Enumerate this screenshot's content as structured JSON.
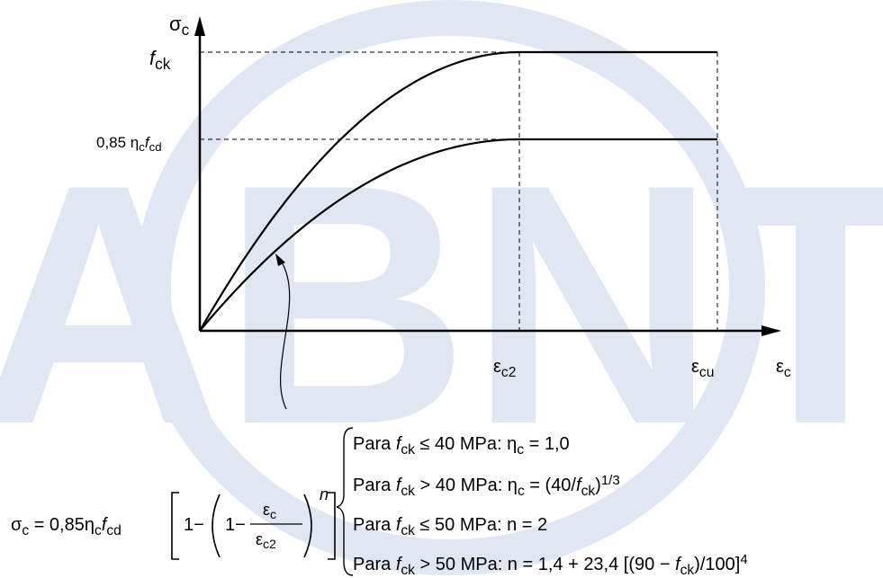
{
  "watermark": "ABNT",
  "diagram": {
    "y_axis": [
      {
        "text": "σ"
      },
      {
        "text": "c",
        "style": "sub"
      }
    ],
    "x_axis": [
      {
        "text": "ε"
      },
      {
        "text": "c",
        "style": "sub"
      }
    ],
    "fck_level": [
      {
        "text": "f",
        "style": "italic"
      },
      {
        "text": "ck",
        "style": "sub"
      }
    ],
    "design_level": [
      {
        "text": "0,85 η"
      },
      {
        "text": "c",
        "style": "sub"
      },
      {
        "text": "f",
        "style": "italic"
      },
      {
        "text": "cd",
        "style": "sub"
      }
    ],
    "strain_c2": [
      {
        "text": "ε"
      },
      {
        "text": "c2",
        "style": "sub"
      }
    ],
    "strain_cu": [
      {
        "text": "ε"
      },
      {
        "text": "cu",
        "style": "sub"
      }
    ]
  },
  "formula": {
    "lhs": [
      {
        "text": "σ"
      },
      {
        "text": "c",
        "style": "sub"
      },
      {
        "text": " = 0,85η"
      },
      {
        "text": "c",
        "style": "sub"
      },
      {
        "text": "f",
        "style": "italic"
      },
      {
        "text": "cd",
        "style": "sub"
      }
    ],
    "outer_term": [
      {
        "text": "1−"
      }
    ],
    "inner_term": [
      {
        "text": "1−"
      }
    ],
    "numerator": [
      {
        "text": "ε"
      },
      {
        "text": "c",
        "style": "sub"
      }
    ],
    "denominator": [
      {
        "text": "ε"
      },
      {
        "text": "c2",
        "style": "sub"
      }
    ],
    "exponent": [
      {
        "text": "n",
        "style": "italic"
      }
    ]
  },
  "conditions": [
    [
      {
        "text": "Para "
      },
      {
        "text": "f",
        "style": "italic"
      },
      {
        "text": "ck",
        "style": "sub"
      },
      {
        "text": " ≤ 40 MPa: η"
      },
      {
        "text": "c",
        "style": "sub"
      },
      {
        "text": " = 1,0"
      }
    ],
    [
      {
        "text": "Para "
      },
      {
        "text": "f",
        "style": "italic"
      },
      {
        "text": "ck",
        "style": "sub"
      },
      {
        "text": " > 40 MPa: η"
      },
      {
        "text": "c",
        "style": "sub"
      },
      {
        "text": " = (40/"
      },
      {
        "text": "f",
        "style": "italic"
      },
      {
        "text": "ck",
        "style": "sub"
      },
      {
        "text": ")"
      },
      {
        "text": "1/3",
        "style": "sup"
      }
    ],
    [
      {
        "text": "Para "
      },
      {
        "text": "f",
        "style": "italic"
      },
      {
        "text": "ck",
        "style": "sub"
      },
      {
        "text": " ≤ 50 MPa: n = 2"
      }
    ],
    [
      {
        "text": "Para "
      },
      {
        "text": "f",
        "style": "italic"
      },
      {
        "text": "ck",
        "style": "sub"
      },
      {
        "text": " > 50 MPa: n = 1,4 + 23,4 [(90 − "
      },
      {
        "text": "f",
        "style": "italic"
      },
      {
        "text": "ck",
        "style": "sub"
      },
      {
        "text": ")/100]"
      },
      {
        "text": "4",
        "style": "sup"
      }
    ]
  ]
}
